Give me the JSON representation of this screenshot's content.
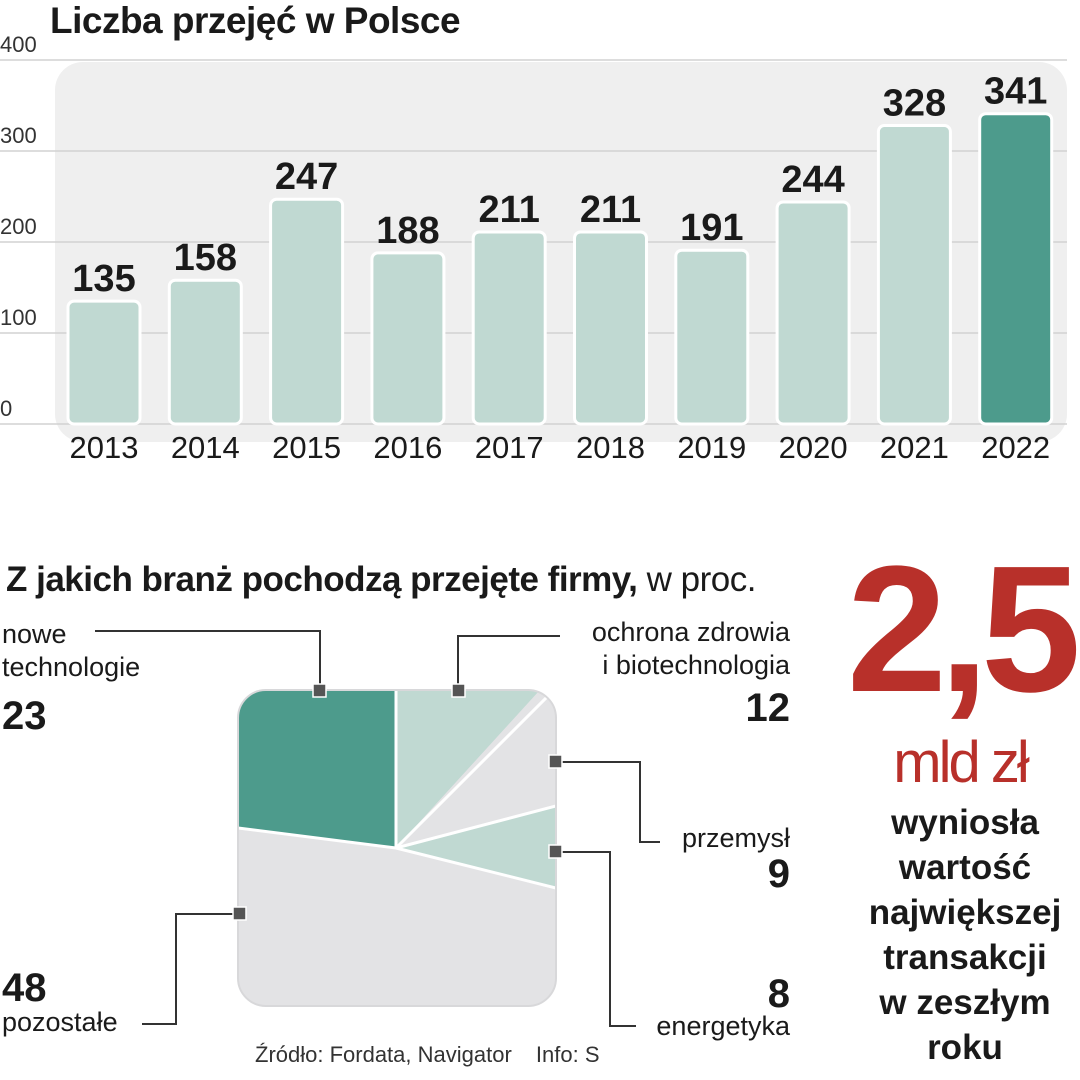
{
  "chart_data": [
    {
      "type": "bar",
      "title": "Liczba przejęć w Polsce",
      "categories": [
        "2013",
        "2014",
        "2015",
        "2016",
        "2017",
        "2018",
        "2019",
        "2020",
        "2021",
        "2022"
      ],
      "values": [
        135,
        158,
        247,
        188,
        211,
        211,
        191,
        244,
        328,
        341
      ],
      "ylim": [
        0,
        400
      ],
      "yticks": [
        0,
        100,
        200,
        300,
        400
      ],
      "grid": true,
      "colors": {
        "bar": "#c0d9d2",
        "highlight": "#4d9b8c",
        "bg": "#efefef"
      }
    },
    {
      "type": "pie",
      "title": "Z jakich branż pochodzą przejęte firmy,",
      "unit": "w proc.",
      "slices": [
        {
          "label": "nowe technologie",
          "value": 23,
          "color": "#4d9b8c"
        },
        {
          "label": "ochrona zdrowia i biotechnologia",
          "value": 12,
          "color": "#c0d9d2"
        },
        {
          "label": "przemysł",
          "value": 9,
          "color": "#e3e3e5"
        },
        {
          "label": "energetyka",
          "value": 8,
          "color": "#c0d9d2"
        },
        {
          "label": "pozostałe",
          "value": 48,
          "color": "#e3e3e5"
        }
      ]
    }
  ],
  "pie_labels": {
    "nowe": {
      "line1": "nowe",
      "line2": "technologie",
      "value": "23"
    },
    "ochrona": {
      "line1": "ochrona zdrowia",
      "line2": "i biotechnologia",
      "value": "12"
    },
    "przemysl": {
      "line1": "przemysł",
      "value": "9"
    },
    "energetyka": {
      "line1": "energetyka",
      "value": "8"
    },
    "pozostale": {
      "line1": "pozostałe",
      "value": "48"
    }
  },
  "highlight": {
    "value": "2,5",
    "unit": "mld zł",
    "text": "wyniosła\nwartość\nnajwiększej\ntransakcji\nw zeszłym\nroku"
  },
  "source": {
    "text": "Źródło: Fordata, Navigator",
    "info": "Info: S"
  },
  "accent_color": "#b8302a"
}
